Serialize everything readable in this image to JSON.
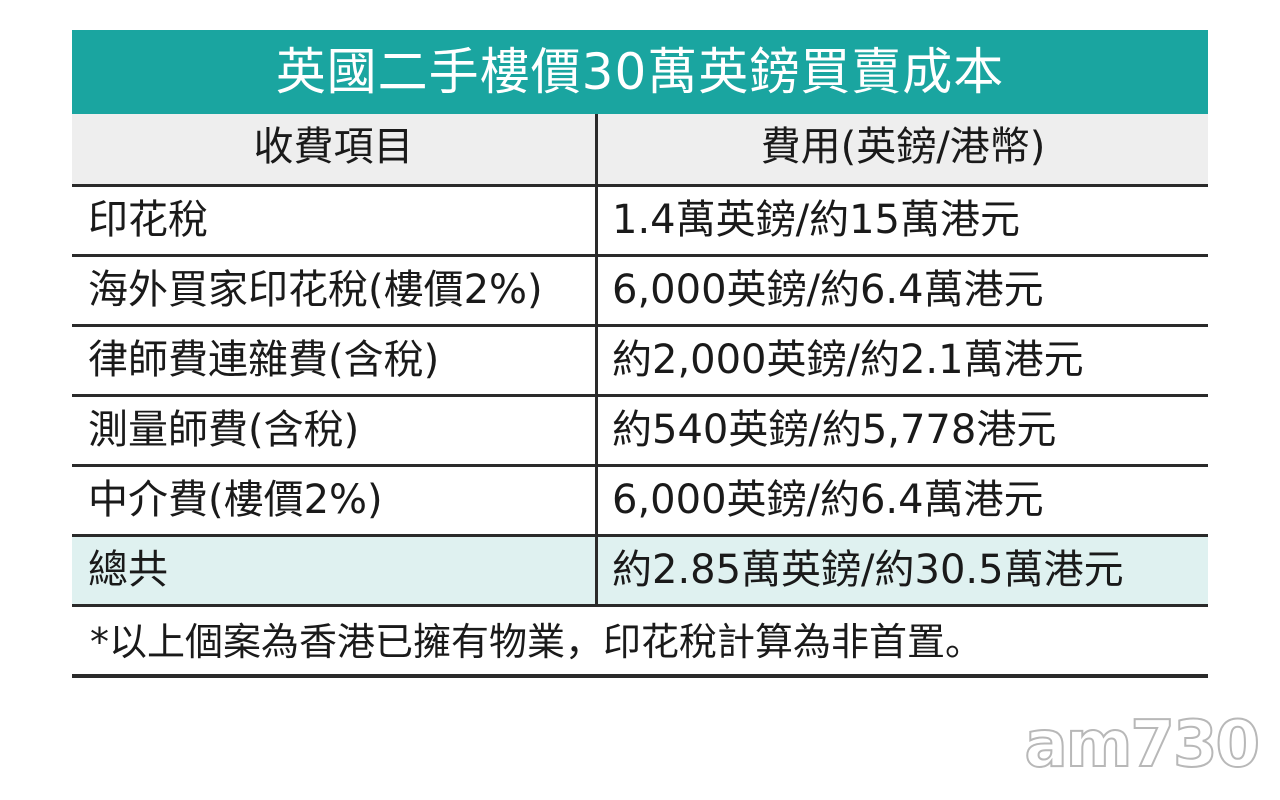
{
  "title": "英國二手樓價30萬英鎊買賣成本",
  "table": {
    "headers": {
      "item": "收費項目",
      "fee": "費用(英鎊/港幣)"
    },
    "rows": [
      {
        "item": "印花稅",
        "fee": "1.4萬英鎊/約15萬港元"
      },
      {
        "item": "海外買家印花稅(樓價2%)",
        "fee": "6,000英鎊/約6.4萬港元"
      },
      {
        "item": "律師費連雜費(含稅)",
        "fee": "約2,000英鎊/約2.1萬港元"
      },
      {
        "item": "測量師費(含稅)",
        "fee": "約540英鎊/約5,778港元"
      },
      {
        "item": "中介費(樓價2%)",
        "fee": "6,000英鎊/約6.4萬港元"
      }
    ],
    "total": {
      "item": "總共",
      "fee": "約2.85萬英鎊/約30.5萬港元"
    },
    "note": "*以上個案為香港已擁有物業，印花稅計算為非首置。"
  },
  "watermark": "am730",
  "colors": {
    "title_bg": "#1aa5a0",
    "header_bg": "#eeeeee",
    "total_bg": "#dff1f0"
  }
}
